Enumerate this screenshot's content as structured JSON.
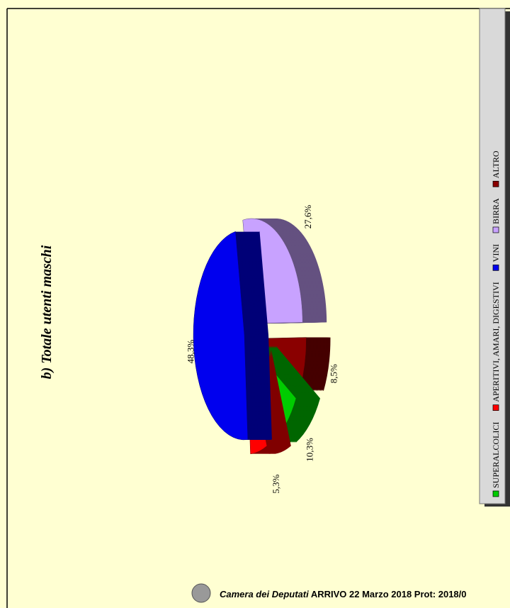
{
  "chart_data": {
    "type": "pie",
    "title": "b) Totale utenti maschi",
    "categories": [
      "SUPERALCOLICI",
      "APERITIVI, AMARI, DIGESTIVI",
      "VINI",
      "BIRRA",
      "ALTRO"
    ],
    "values": [
      10.3,
      5.3,
      48.3,
      27.6,
      8.5
    ],
    "value_labels": [
      "10,3%",
      "5,3%",
      "48,3%",
      "27,6%",
      "8,5%"
    ],
    "colors": [
      "#00cc00",
      "#ff0000",
      "#0000ee",
      "#c8a2ff",
      "#8a0000"
    ],
    "legend": "right"
  },
  "footer": {
    "source": "Camera dei Deputati",
    "stamp": "ARRIVO 22 Marzo 2018 Prot: 2018/0"
  }
}
